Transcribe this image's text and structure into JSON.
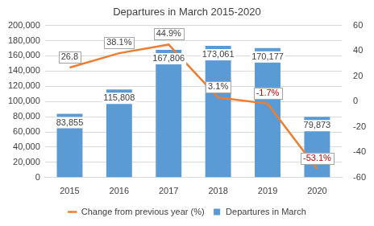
{
  "chart_data": {
    "type": "bar",
    "title": "Departures in March 2015-2020",
    "categories": [
      "2015",
      "2016",
      "2017",
      "2018",
      "2019",
      "2020"
    ],
    "series": [
      {
        "name": "Departures in March",
        "type": "bar",
        "color": "#5b9bd5",
        "values": [
          83855,
          115808,
          167806,
          173061,
          170177,
          79873
        ],
        "value_labels": [
          "83,855",
          "115,808",
          "167,806",
          "173,061",
          "170,177",
          "79,873"
        ]
      },
      {
        "name": "Change from previous year (%)",
        "type": "line",
        "color": "#ed7d31",
        "axis": "y2",
        "values": [
          26.8,
          38.1,
          44.9,
          3.1,
          -1.7,
          -53.1
        ],
        "value_labels": [
          "26.8",
          "38.1%",
          "44.9%",
          "3.1%",
          "-1.7%",
          "-53.1%"
        ]
      }
    ],
    "ylim": [
      0,
      200000
    ],
    "yticks": [
      {
        "value": 0,
        "label": "0"
      },
      {
        "value": 20000,
        "label": "20,000"
      },
      {
        "value": 40000,
        "label": "40,000"
      },
      {
        "value": 60000,
        "label": "60,000"
      },
      {
        "value": 80000,
        "label": "80,000"
      },
      {
        "value": 100000,
        "label": "100,000"
      },
      {
        "value": 120000,
        "label": "120,000"
      },
      {
        "value": 140000,
        "label": "140,000"
      },
      {
        "value": 160000,
        "label": "160,000"
      },
      {
        "value": 180000,
        "label": "180,000"
      },
      {
        "value": 200000,
        "label": "200,000"
      }
    ],
    "y2lim": [
      -60,
      60
    ],
    "y2ticks": [
      -60,
      -40,
      -20,
      0,
      20,
      40,
      60
    ],
    "grid": true,
    "legend": "bottom",
    "data_labels": true
  }
}
